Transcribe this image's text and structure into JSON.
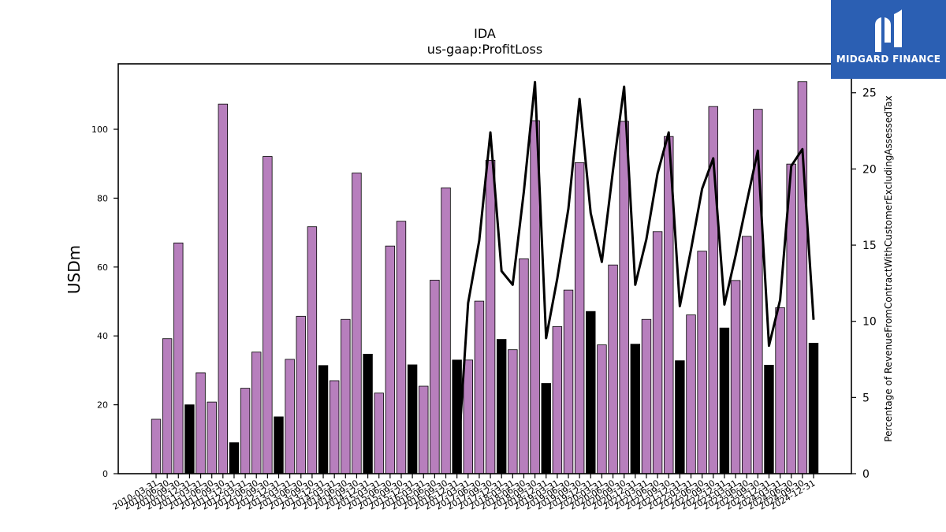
{
  "brand": {
    "name": "MIDGARD FINANCE",
    "color": "#2b5fb3"
  },
  "chart_data": {
    "type": "bar",
    "title": "IDA",
    "subtitle": "us-gaap:ProfitLoss",
    "ylabel": "USDm",
    "y2label": "Percentage of RevenueFromContractWithCustomerExcludingAssessedTax",
    "ylim": [
      0,
      119
    ],
    "y2lim": [
      0,
      26.9
    ],
    "yticks": [
      0,
      20,
      40,
      60,
      80,
      100
    ],
    "y2ticks": [
      0,
      5,
      10,
      15,
      20,
      25
    ],
    "colors": {
      "quarterly": "#b77fbd",
      "annual": "#000000",
      "line": "#000000"
    },
    "categories": [
      "2010-03-31",
      "2010-06-30",
      "2010-09-30",
      "2010-12-31",
      "2011-03-31",
      "2011-06-30",
      "2011-09-30",
      "2011-12-31",
      "2012-03-31",
      "2012-06-30",
      "2012-09-30",
      "2012-12-31",
      "2013-03-31",
      "2013-06-30",
      "2013-09-30",
      "2013-12-31",
      "2014-03-31",
      "2014-06-30",
      "2014-09-30",
      "2014-12-31",
      "2015-03-31",
      "2015-06-30",
      "2015-09-30",
      "2015-12-31",
      "2016-03-31",
      "2016-06-30",
      "2016-09-30",
      "2016-12-31",
      "2017-03-31",
      "2017-06-30",
      "2017-09-30",
      "2017-12-31",
      "2018-03-31",
      "2018-06-30",
      "2018-09-30",
      "2018-12-31",
      "2019-03-31",
      "2019-06-30",
      "2019-09-30",
      "2019-12-31",
      "2020-03-31",
      "2020-06-30",
      "2020-09-30",
      "2020-12-31",
      "2021-03-31",
      "2021-06-30",
      "2021-09-30",
      "2021-12-31",
      "2022-03-31",
      "2022-06-30",
      "2022-09-30",
      "2022-12-31",
      "2023-03-31",
      "2023-06-30",
      "2023-09-30",
      "2023-12-31",
      "2024-03-31",
      "2024-06-30",
      "2024-09-30",
      "2024-12-31"
    ],
    "values": [
      15.8,
      39.2,
      67,
      20,
      29.3,
      20.8,
      107.3,
      9,
      24.8,
      35.3,
      92.1,
      16.5,
      33.2,
      45.7,
      71.7,
      31.4,
      27,
      44.8,
      87.3,
      34.7,
      23.4,
      66.1,
      73.3,
      31.6,
      25.4,
      56.2,
      83,
      33,
      33,
      50.1,
      91,
      39,
      36,
      62.4,
      102.5,
      26.2,
      42.7,
      53.3,
      90.3,
      47.1,
      37.4,
      60.6,
      102.3,
      37.6,
      44.8,
      70.3,
      97.9,
      32.8,
      46.1,
      64.6,
      106.6,
      42.3,
      56.1,
      68.9,
      105.8,
      31.5,
      48.2,
      89.9,
      113.8,
      37.9
    ],
    "bar_kind": [
      "q",
      "q",
      "q",
      "a",
      "q",
      "q",
      "q",
      "a",
      "q",
      "q",
      "q",
      "a",
      "q",
      "q",
      "q",
      "a",
      "q",
      "q",
      "q",
      "a",
      "q",
      "q",
      "q",
      "a",
      "q",
      "q",
      "q",
      "a",
      "q",
      "q",
      "q",
      "a",
      "q",
      "q",
      "q",
      "a",
      "q",
      "q",
      "q",
      "a",
      "q",
      "q",
      "q",
      "a",
      "q",
      "q",
      "q",
      "a",
      "q",
      "q",
      "q",
      "a",
      "q",
      "q",
      "q",
      "a",
      "q",
      "q",
      "q",
      "a"
    ],
    "line_values": [
      null,
      null,
      null,
      null,
      null,
      null,
      null,
      null,
      null,
      null,
      null,
      null,
      null,
      null,
      null,
      null,
      null,
      null,
      null,
      null,
      null,
      null,
      null,
      null,
      null,
      null,
      null,
      0,
      11.2,
      15.3,
      22.4,
      13.3,
      12.4,
      18.5,
      25.7,
      8.9,
      12.8,
      17.4,
      24.6,
      17.1,
      13.9,
      19.9,
      25.4,
      12.4,
      15.4,
      19.7,
      22.4,
      11,
      14.7,
      18.7,
      20.7,
      11.1,
      14.3,
      17.8,
      21.2,
      8.4,
      11.4,
      20.2,
      21.3,
      10.1
    ]
  }
}
